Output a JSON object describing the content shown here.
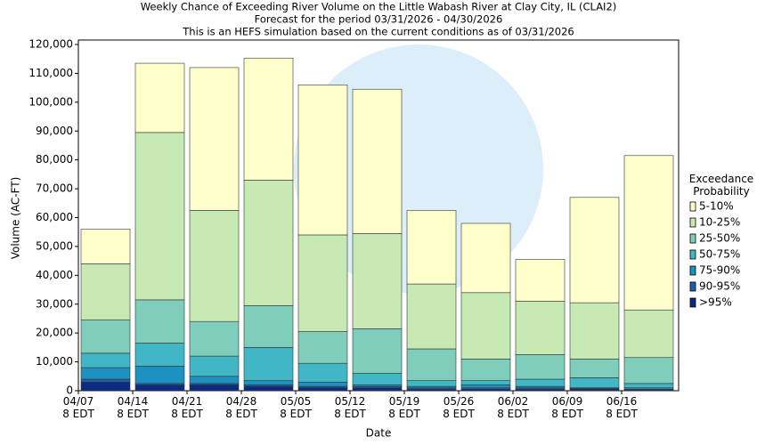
{
  "chart_data": {
    "type": "stacked_bar",
    "title": "Weekly Chance of Exceeding River Volume on the Little Wabash River at Clay City, IL (CLAI2)",
    "subtitle": "Forecast for the period 03/31/2026 - 04/30/2026",
    "note": "This is an HEFS simulation based on the current conditions as of 03/31/2026",
    "x_label": "Date",
    "y_label": "Volume (AC-FT)",
    "legend_title": "Exceedance Probability",
    "categories": [
      "04/07 8 EDT",
      "04/14 8 EDT",
      "04/21 8 EDT",
      "04/28 8 EDT",
      "05/05 8 EDT",
      "05/12 8 EDT",
      "05/19 8 EDT",
      "05/26 8 EDT",
      "06/02 8 EDT",
      "06/09 8 EDT",
      "06/16 8 EDT"
    ],
    "series": [
      {
        "name": ">95%",
        "color": "#0c2c84",
        "values": [
          3000,
          2000,
          2000,
          1500,
          1000,
          1000,
          500,
          500,
          500,
          500,
          300
        ]
      },
      {
        "name": "90-95%",
        "color": "#225ea8",
        "values": [
          1000,
          500,
          500,
          500,
          500,
          500,
          500,
          500,
          500,
          300,
          200
        ]
      },
      {
        "name": "75-90%",
        "color": "#1d91c0",
        "values": [
          4000,
          6000,
          2500,
          1500,
          1500,
          500,
          500,
          1000,
          500,
          200,
          500
        ]
      },
      {
        "name": "50-75%",
        "color": "#41b6c4",
        "values": [
          5000,
          8000,
          7000,
          11500,
          6500,
          4000,
          2000,
          1500,
          2500,
          3500,
          1500
        ]
      },
      {
        "name": "25-50%",
        "color": "#7fcdbb",
        "values": [
          11500,
          15000,
          12000,
          14500,
          11000,
          15500,
          11000,
          7500,
          8500,
          6500,
          9000
        ]
      },
      {
        "name": "10-25%",
        "color": "#c7e9b4",
        "values": [
          19500,
          58000,
          38500,
          43500,
          33500,
          33000,
          22500,
          23000,
          18500,
          19500,
          16500
        ]
      },
      {
        "name": "5-10%",
        "color": "#ffffcc",
        "values": [
          12000,
          24000,
          49500,
          42300,
          52000,
          50000,
          25500,
          24000,
          14500,
          36500,
          53500
        ]
      }
    ],
    "ylim": [
      0,
      120000
    ],
    "yticks": [
      0,
      {
        "value": 10000,
        "label": "10,000"
      },
      {
        "value": 20000,
        "label": "20,000"
      },
      {
        "value": 30000,
        "label": "30,000"
      },
      {
        "value": 40000,
        "label": "40,000"
      },
      {
        "value": 50000,
        "label": "50,000"
      },
      {
        "value": 60000,
        "label": "60,000"
      },
      {
        "value": 70000,
        "label": "70,000"
      },
      {
        "value": 80000,
        "label": "80,000"
      },
      {
        "value": 90000,
        "label": "90,000"
      },
      {
        "value": 100000,
        "label": "100,000"
      },
      {
        "value": 110000,
        "label": "110,000"
      },
      {
        "value": 120000,
        "label": "120,000"
      }
    ],
    "legend_position": "right"
  }
}
